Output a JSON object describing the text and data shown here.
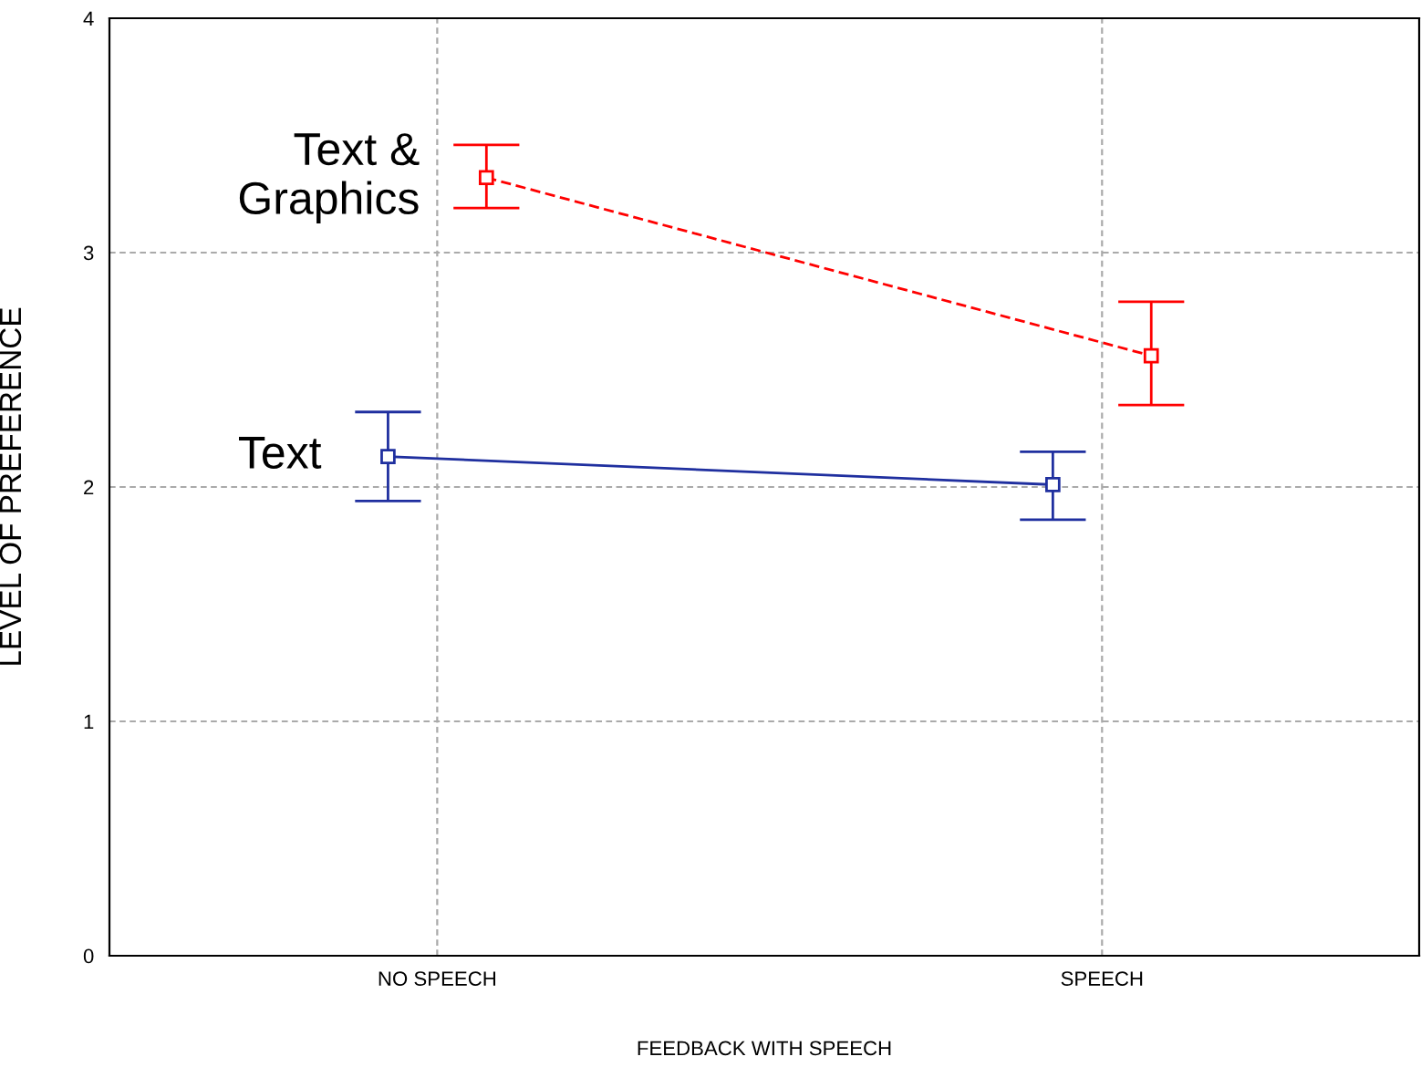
{
  "chart_data": {
    "type": "line",
    "xlabel": "FEEDBACK WITH SPEECH",
    "ylabel": "LEVEL OF PREFERENCE",
    "categories": [
      "NO SPEECH",
      "SPEECH"
    ],
    "series": [
      {
        "name": "Text &\nGraphics",
        "color": "#ff0000",
        "values": [
          3.32,
          2.56
        ],
        "errors": [
          [
            3.19,
            3.46
          ],
          [
            2.35,
            2.79
          ]
        ],
        "line_style": "dashed"
      },
      {
        "name": "Text",
        "color": "#1f2f9f",
        "values": [
          2.13,
          2.01
        ],
        "errors": [
          [
            1.94,
            2.32
          ],
          [
            1.86,
            2.15
          ]
        ],
        "line_style": "solid"
      }
    ],
    "ylim": [
      0,
      4
    ],
    "yticks": [
      0,
      1,
      2,
      3,
      4
    ],
    "grid": true,
    "marker": "square"
  }
}
